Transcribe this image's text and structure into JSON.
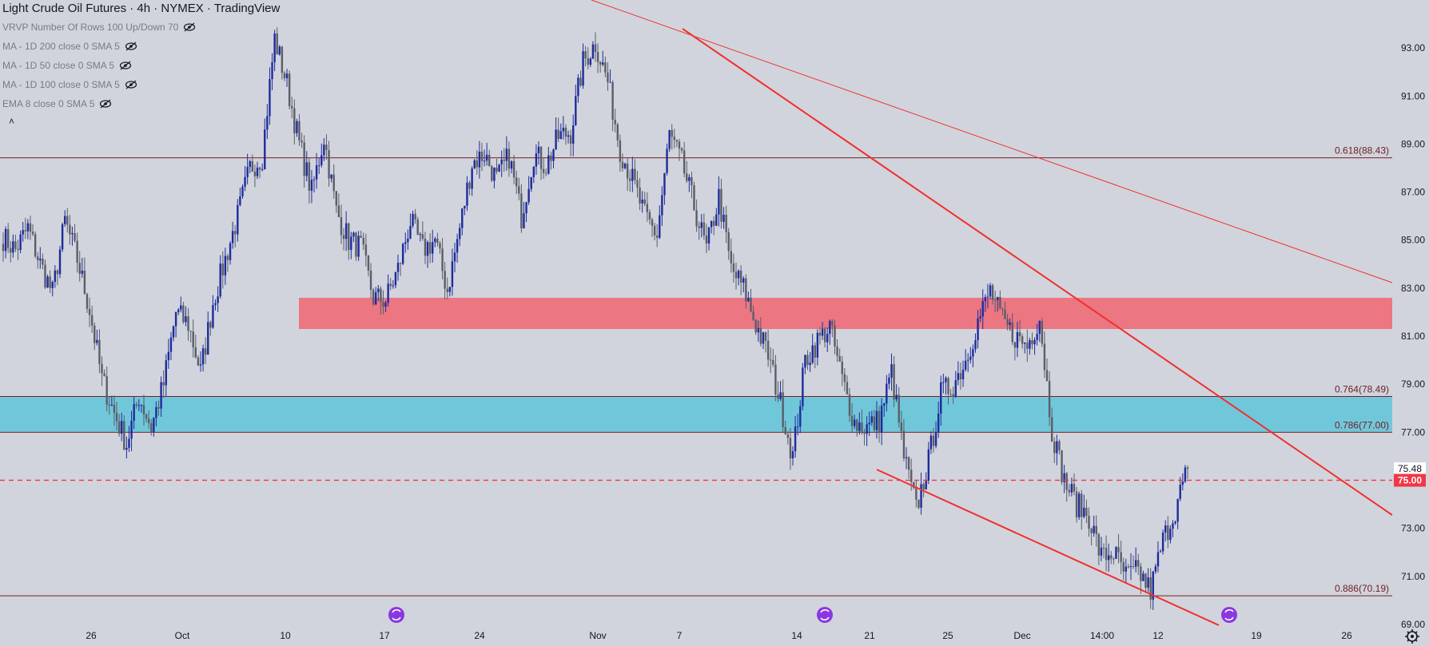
{
  "header": {
    "title": "Light Crude Oil Futures · 4h · NYMEX · TradingView"
  },
  "indicators": [
    {
      "label": "VRVP Number Of Rows 100 Up/Down 70"
    },
    {
      "label": "MA - 1D 200 close 0 SMA 5"
    },
    {
      "label": "MA - 1D 50 close 0 SMA 5"
    },
    {
      "label": "MA - 1D 100 close 0 SMA 5"
    },
    {
      "label": "EMA 8 close 0 SMA 5"
    }
  ],
  "colors": {
    "background": "#d1d4dc",
    "up_candle": "#1e2b9c",
    "down_candle": "#5a5e68",
    "red_zone": "#ee6b78",
    "blue_zone": "#6bc6d9",
    "trendline": "#f0302d",
    "fib_line": "#7a1f24",
    "price_tag_current": "#ffffff",
    "price_tag_level": "#f23645"
  },
  "chart_data": {
    "type": "candlestick",
    "title": "Light Crude Oil Futures · 4h · NYMEX · TradingView",
    "ylim": [
      68.1,
      95.0
    ],
    "y_ticks": [
      69.0,
      71.0,
      73.0,
      75.0,
      77.0,
      79.0,
      81.0,
      83.0,
      85.0,
      87.0,
      89.0,
      91.0,
      93.0
    ],
    "x_ticks": [
      "26",
      "Oct",
      "10",
      "17",
      "24",
      "Nov",
      "7",
      "14",
      "21",
      "25",
      "Dec",
      "14:00",
      "12",
      "19",
      "26"
    ],
    "fib_levels": [
      {
        "label": "0.618(88.43)",
        "value": 88.43
      },
      {
        "label": "0.764(78.49)",
        "value": 78.49
      },
      {
        "label": "0.786(77.00)",
        "value": 77.0
      },
      {
        "label": "0.886(70.19)",
        "value": 70.19
      }
    ],
    "zones": [
      {
        "name": "resistance-zone",
        "from": 81.3,
        "to": 82.6,
        "color": "#ee6b78"
      },
      {
        "name": "support-zone",
        "from": 77.0,
        "to": 78.49,
        "color": "#6bc6d9"
      }
    ],
    "current_price": {
      "label": "75.48",
      "value": 75.48
    },
    "level_line": {
      "label": "75.00",
      "value": 75.0
    },
    "close_path": [
      85.1,
      84.6,
      85.5,
      84.0,
      82.8,
      85.8,
      84.2,
      82.1,
      79.2,
      77.8,
      76.5,
      78.5,
      77.2,
      79.0,
      82.0,
      81.5,
      79.5,
      82.4,
      84.2,
      86.0,
      88.0,
      88.5,
      93.4,
      91.5,
      89.0,
      87.0,
      89.3,
      86.2,
      85.0,
      84.7,
      82.6,
      82.5,
      83.8,
      85.8,
      84.6,
      85.0,
      82.9,
      85.5,
      88.2,
      88.6,
      87.5,
      88.5,
      86.0,
      88.6,
      88.1,
      89.3,
      89.5,
      92.4,
      93.2,
      91.6,
      88.8,
      87.5,
      86.0,
      85.2,
      89.4,
      88.2,
      86.4,
      84.6,
      86.8,
      83.8,
      83.0,
      81.5,
      80.2,
      78.2,
      76.0,
      80.0,
      80.8,
      81.4,
      79.2,
      77.4,
      77.2,
      77.5,
      79.5,
      76.0,
      73.8,
      75.8,
      78.6,
      79.0,
      80.0,
      81.6,
      82.9,
      81.6,
      81.0,
      80.6,
      81.8,
      77.1,
      75.0,
      74.0,
      73.5,
      71.8,
      72.0,
      71.0,
      71.2,
      70.4,
      72.5,
      73.8,
      75.48
    ]
  }
}
